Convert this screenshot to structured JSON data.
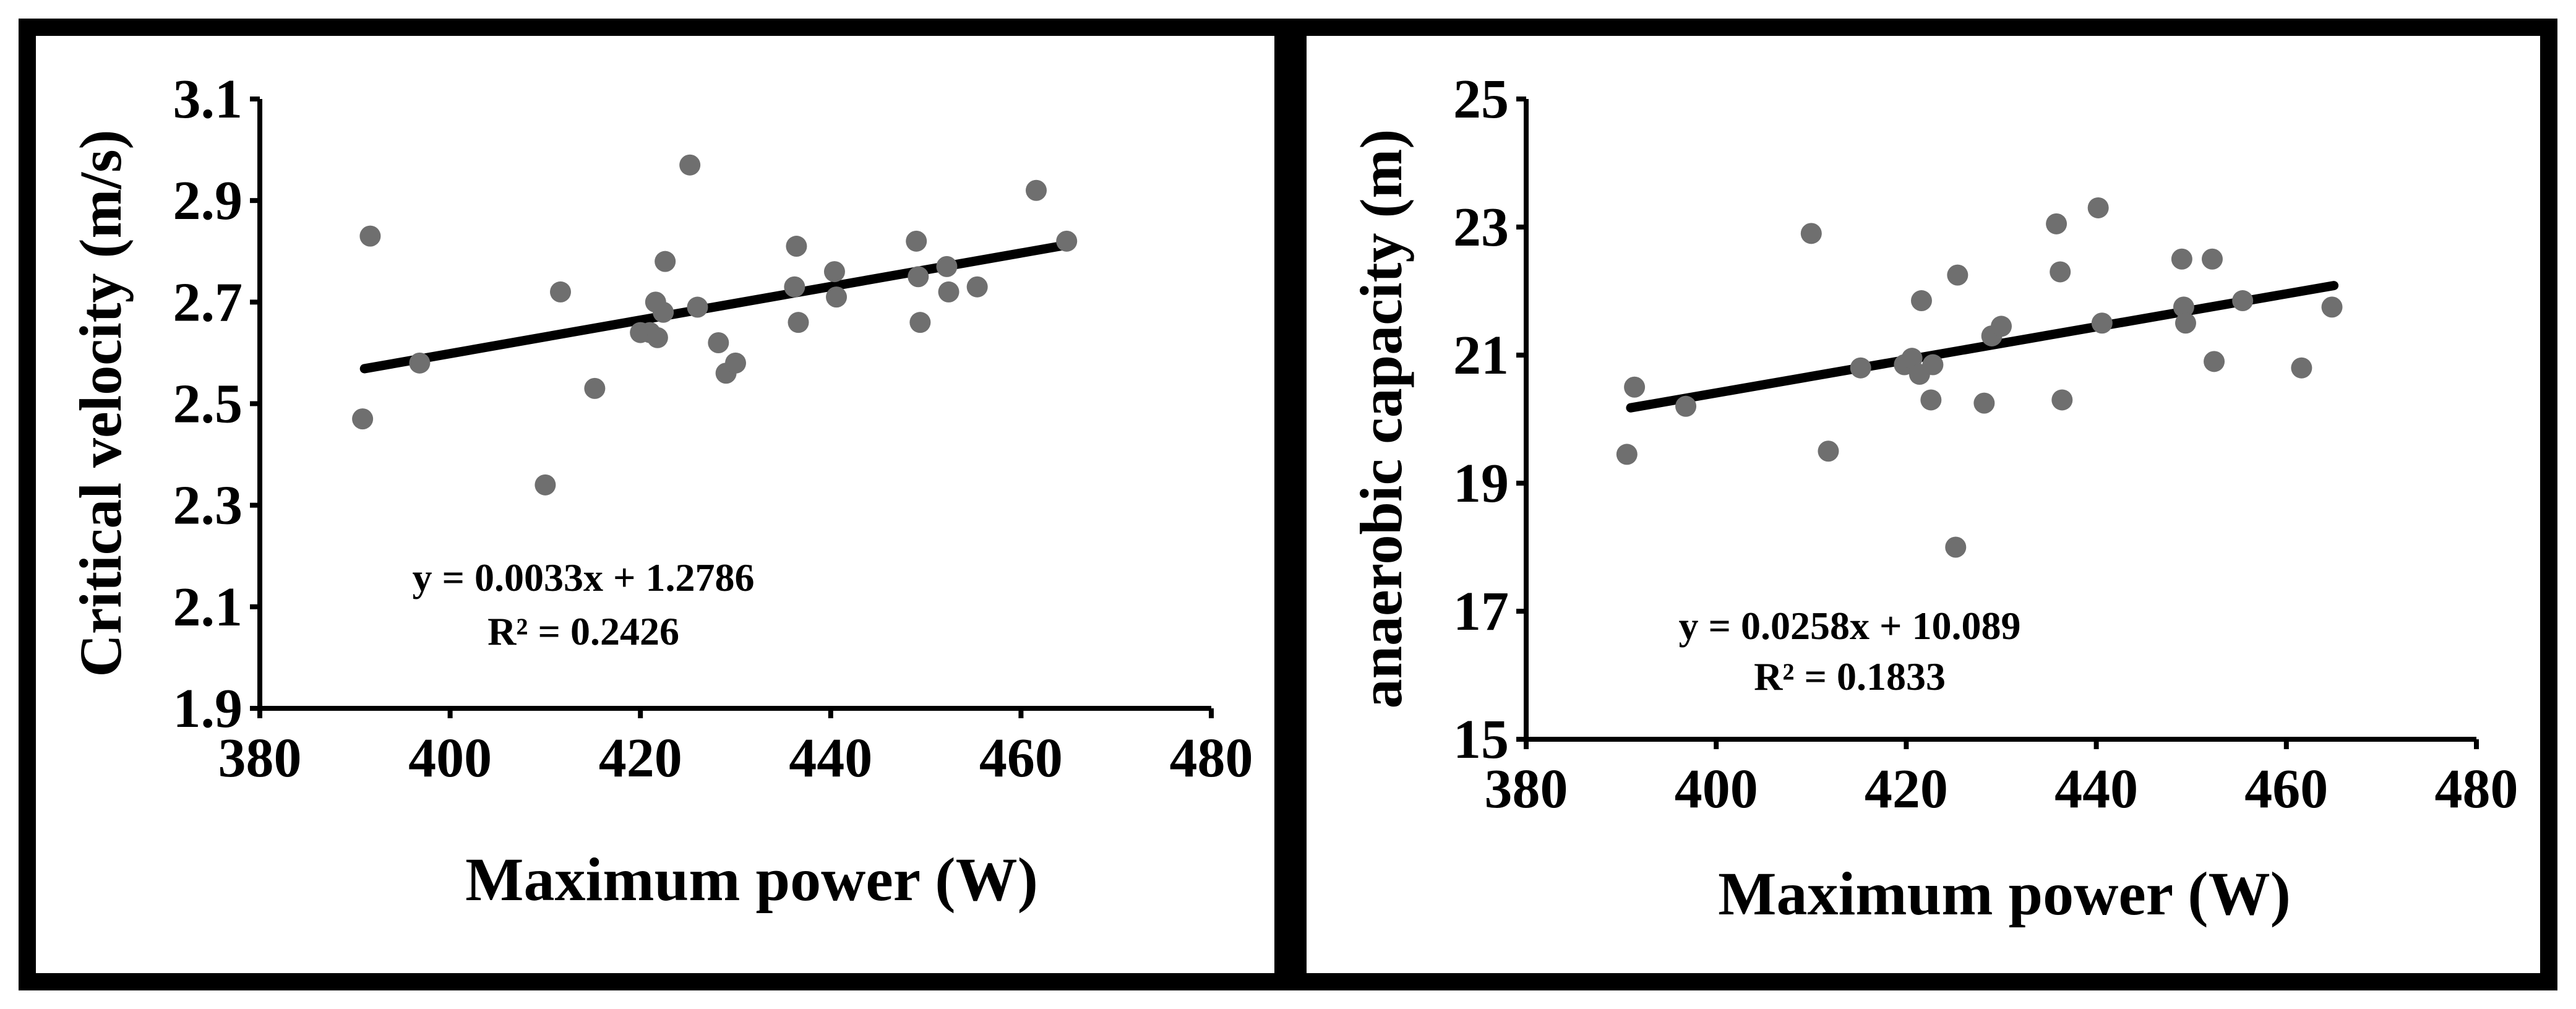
{
  "chart_data": [
    {
      "type": "scatter",
      "xlabel": "Maximum power (W)",
      "ylabel": "Critical velocity (m/s)",
      "xlim": [
        380,
        480
      ],
      "ylim": [
        1.9,
        3.1
      ],
      "x_ticks": [
        380,
        400,
        420,
        440,
        460,
        480
      ],
      "y_ticks": [
        1.9,
        2.1,
        2.3,
        2.5,
        2.7,
        2.9,
        3.1
      ],
      "x_tick_labels": [
        "380",
        "400",
        "420",
        "440",
        "460",
        "480"
      ],
      "y_tick_labels": [
        "1.9",
        "2.1",
        "2.3",
        "2.5",
        "2.7",
        "2.9",
        "3.1"
      ],
      "points": [
        {
          "x": 390.8,
          "y": 2.47
        },
        {
          "x": 391.6,
          "y": 2.83
        },
        {
          "x": 396.8,
          "y": 2.58
        },
        {
          "x": 410,
          "y": 2.34
        },
        {
          "x": 411.6,
          "y": 2.72
        },
        {
          "x": 415.2,
          "y": 2.53
        },
        {
          "x": 420,
          "y": 2.64
        },
        {
          "x": 421,
          "y": 2.64
        },
        {
          "x": 421.6,
          "y": 2.7
        },
        {
          "x": 421.8,
          "y": 2.63
        },
        {
          "x": 422.4,
          "y": 2.68
        },
        {
          "x": 422.6,
          "y": 2.78
        },
        {
          "x": 425.2,
          "y": 2.97
        },
        {
          "x": 426,
          "y": 2.69
        },
        {
          "x": 428.2,
          "y": 2.62
        },
        {
          "x": 429,
          "y": 2.56
        },
        {
          "x": 430,
          "y": 2.58
        },
        {
          "x": 436.2,
          "y": 2.73
        },
        {
          "x": 436.4,
          "y": 2.81
        },
        {
          "x": 436.6,
          "y": 2.66
        },
        {
          "x": 440.4,
          "y": 2.76
        },
        {
          "x": 440.6,
          "y": 2.71
        },
        {
          "x": 449,
          "y": 2.82
        },
        {
          "x": 449.2,
          "y": 2.75
        },
        {
          "x": 449.4,
          "y": 2.66
        },
        {
          "x": 452.2,
          "y": 2.77
        },
        {
          "x": 452.4,
          "y": 2.72
        },
        {
          "x": 455.4,
          "y": 2.73
        },
        {
          "x": 461.6,
          "y": 2.92
        },
        {
          "x": 464.8,
          "y": 2.82
        }
      ],
      "trendline": {
        "slope": 0.0033,
        "intercept": 1.2786,
        "x_range": [
          391,
          465
        ]
      },
      "equation": "y = 0.0033x + 1.2786",
      "r_squared": "R² = 0.2426"
    },
    {
      "type": "scatter",
      "xlabel": "Maximum power  (W)",
      "ylabel": "anaerobic capacity (m)",
      "xlim": [
        380,
        480
      ],
      "ylim": [
        15,
        25
      ],
      "x_ticks": [
        380,
        400,
        420,
        440,
        460,
        480
      ],
      "y_ticks": [
        15,
        17,
        19,
        21,
        23,
        25
      ],
      "x_tick_labels": [
        "380",
        "400",
        "420",
        "440",
        "460",
        "480"
      ],
      "y_tick_labels": [
        "15",
        "17",
        "19",
        "21",
        "23",
        "25"
      ],
      "points": [
        {
          "x": 390.6,
          "y": 19.45
        },
        {
          "x": 391.4,
          "y": 20.5
        },
        {
          "x": 396.8,
          "y": 20.2
        },
        {
          "x": 410,
          "y": 22.9
        },
        {
          "x": 411.8,
          "y": 19.5
        },
        {
          "x": 415.2,
          "y": 20.8
        },
        {
          "x": 419.8,
          "y": 20.85
        },
        {
          "x": 420.6,
          "y": 20.95
        },
        {
          "x": 421.4,
          "y": 20.7
        },
        {
          "x": 421.6,
          "y": 21.85
        },
        {
          "x": 422.6,
          "y": 20.3
        },
        {
          "x": 422.8,
          "y": 20.85
        },
        {
          "x": 425.4,
          "y": 22.25
        },
        {
          "x": 425.2,
          "y": 18.0
        },
        {
          "x": 428.2,
          "y": 20.25
        },
        {
          "x": 429,
          "y": 21.3
        },
        {
          "x": 430,
          "y": 21.45
        },
        {
          "x": 435.8,
          "y": 23.05
        },
        {
          "x": 436.2,
          "y": 22.3
        },
        {
          "x": 436.4,
          "y": 20.3
        },
        {
          "x": 440.2,
          "y": 23.3
        },
        {
          "x": 440.6,
          "y": 21.5
        },
        {
          "x": 449,
          "y": 22.5
        },
        {
          "x": 449.2,
          "y": 21.75
        },
        {
          "x": 449.4,
          "y": 21.5
        },
        {
          "x": 452.2,
          "y": 22.5
        },
        {
          "x": 452.4,
          "y": 20.9
        },
        {
          "x": 455.4,
          "y": 21.85
        },
        {
          "x": 461.6,
          "y": 20.8
        },
        {
          "x": 464.8,
          "y": 21.75
        }
      ],
      "trendline": {
        "slope": 0.0258,
        "intercept": 10.089,
        "x_range": [
          391,
          465
        ]
      },
      "equation": "y = 0.0258x + 10.089",
      "r_squared": "R² = 0.1833"
    }
  ]
}
